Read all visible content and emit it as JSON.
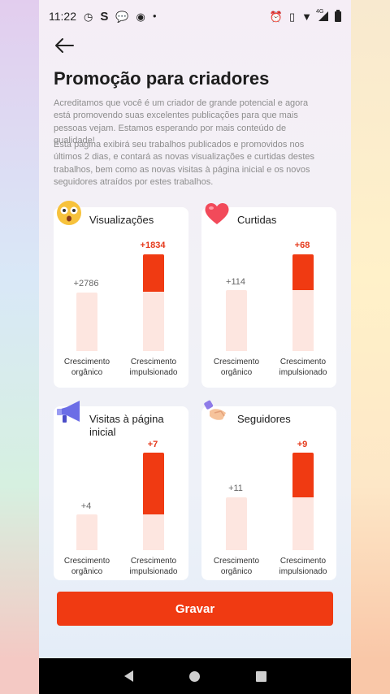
{
  "status_bar": {
    "time": "11:22",
    "left_icons": [
      "clock-icon",
      "s-app-icon",
      "chat-icon",
      "chrome-icon",
      "dot-icon"
    ],
    "right_icons": [
      "alarm-icon",
      "vibrate-icon",
      "wifi-icon",
      "signal-icon",
      "battery-icon"
    ],
    "signal_label": "4G"
  },
  "header": {
    "title": "Promoção para criadores"
  },
  "description": {
    "p1": "Acreditamos que você é um criador de grande potencial e agora está promovendo suas excelentes publicações para que mais pessoas vejam. Estamos esperando por mais conteúdo de qualidade!",
    "p2": "Esta página exibirá seu trabalhos publicados e promovidos nos últimos 2 dias, e contará as novas visualizações e curtidas destes trabalhos, bem como as novas visitas à página inicial e os novos seguidores atraídos por estes trabalhos."
  },
  "cards": [
    {
      "title": "Visualizações",
      "icon": "surprised-face-icon",
      "organic_value": "+2786",
      "boost_value": "+1834",
      "organic_label": "Crescimento orgânico",
      "boost_label": "Crescimento impulsionado"
    },
    {
      "title": "Curtidas",
      "icon": "heart-icon",
      "organic_value": "+114",
      "boost_value": "+68",
      "organic_label": "Crescimento orgânico",
      "boost_label": "Crescimento impulsionado"
    },
    {
      "title": "Visitas à página inicial",
      "icon": "megaphone-icon",
      "organic_value": "+4",
      "boost_value": "+7",
      "organic_label": "Crescimento orgânico",
      "boost_label": "Crescimento impulsionado"
    },
    {
      "title": "Seguidores",
      "icon": "handshake-icon",
      "organic_value": "+11",
      "boost_value": "+9",
      "organic_label": "Crescimento orgânico",
      "boost_label": "Crescimento impulsionado"
    }
  ],
  "save_button": {
    "label": "Gravar"
  },
  "colors": {
    "accent": "#f03a12",
    "accent_light": "#fde6e0",
    "boost_text": "#e5391b"
  }
}
